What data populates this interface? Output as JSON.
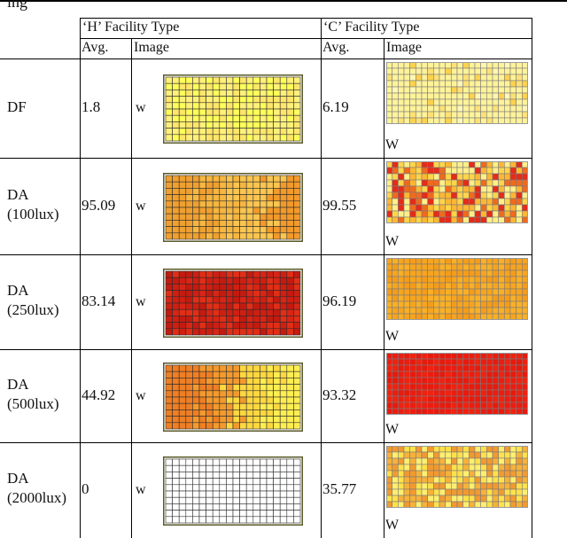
{
  "top_text": "ing",
  "header": {
    "group_h": "‘H’ Facility Type",
    "group_c": "‘C’ Facility Type",
    "avg": "Avg.",
    "image": "Image"
  },
  "rows": [
    {
      "label_line1": "DF",
      "label_line2": "",
      "h_avg": "1.8",
      "h_marker": "w",
      "c_avg": "6.19",
      "c_marker": "W",
      "h_heatmap": {
        "palette": [
          "#ffff5a",
          "#fff07a",
          "#ffe66a"
        ],
        "pattern": "uniform"
      },
      "c_heatmap": {
        "palette": [
          "#fff39a",
          "#ffe176",
          "#ffd24e",
          "#fff7b6"
        ],
        "pattern": "sparse-light"
      }
    },
    {
      "label_line1": "DA",
      "label_line2": "(100lux)",
      "h_avg": "95.09",
      "h_marker": "w",
      "c_avg": "99.55",
      "c_marker": "W",
      "h_heatmap": {
        "palette": [
          "#f0a030",
          "#f6b640",
          "#fac550",
          "#f29a2a"
        ],
        "pattern": "gradient-left"
      },
      "c_heatmap": {
        "palette": [
          "#e52b1a",
          "#f06a1e",
          "#ffd54a",
          "#ffef8a",
          "#ffb733"
        ],
        "pattern": "mixed"
      }
    },
    {
      "label_line1": "DA",
      "label_line2": "(250lux)",
      "h_avg": "83.14",
      "h_marker": "w",
      "c_avg": "96.19",
      "c_marker": "W",
      "h_heatmap": {
        "palette": [
          "#cf1f12",
          "#d82516",
          "#e22e16",
          "#c41a10"
        ],
        "pattern": "uniform"
      },
      "c_heatmap": {
        "palette": [
          "#f7a51e",
          "#f9b026",
          "#f59c1a"
        ],
        "pattern": "uniform"
      }
    },
    {
      "label_line1": "DA",
      "label_line2": "(500lux)",
      "h_avg": "44.92",
      "h_marker": "w",
      "c_avg": "93.32",
      "c_marker": "W",
      "h_heatmap": {
        "palette": [
          "#ef7f24",
          "#f39a2e",
          "#ffd840",
          "#ffee50"
        ],
        "pattern": "gradient-left"
      },
      "c_heatmap": {
        "palette": [
          "#ec1c10",
          "#f0220f",
          "#e8190d"
        ],
        "pattern": "uniform"
      }
    },
    {
      "label_line1": "DA",
      "label_line2": "(2000lux)",
      "h_avg": "0",
      "h_marker": "w",
      "c_avg": "35.77",
      "c_marker": "W",
      "h_heatmap": {
        "palette": [
          "#ffffff"
        ],
        "pattern": "uniform"
      },
      "c_heatmap": {
        "palette": [
          "#ffe24a",
          "#f6b23a",
          "#f29a30",
          "#ffef70"
        ],
        "pattern": "mixed"
      }
    }
  ]
}
